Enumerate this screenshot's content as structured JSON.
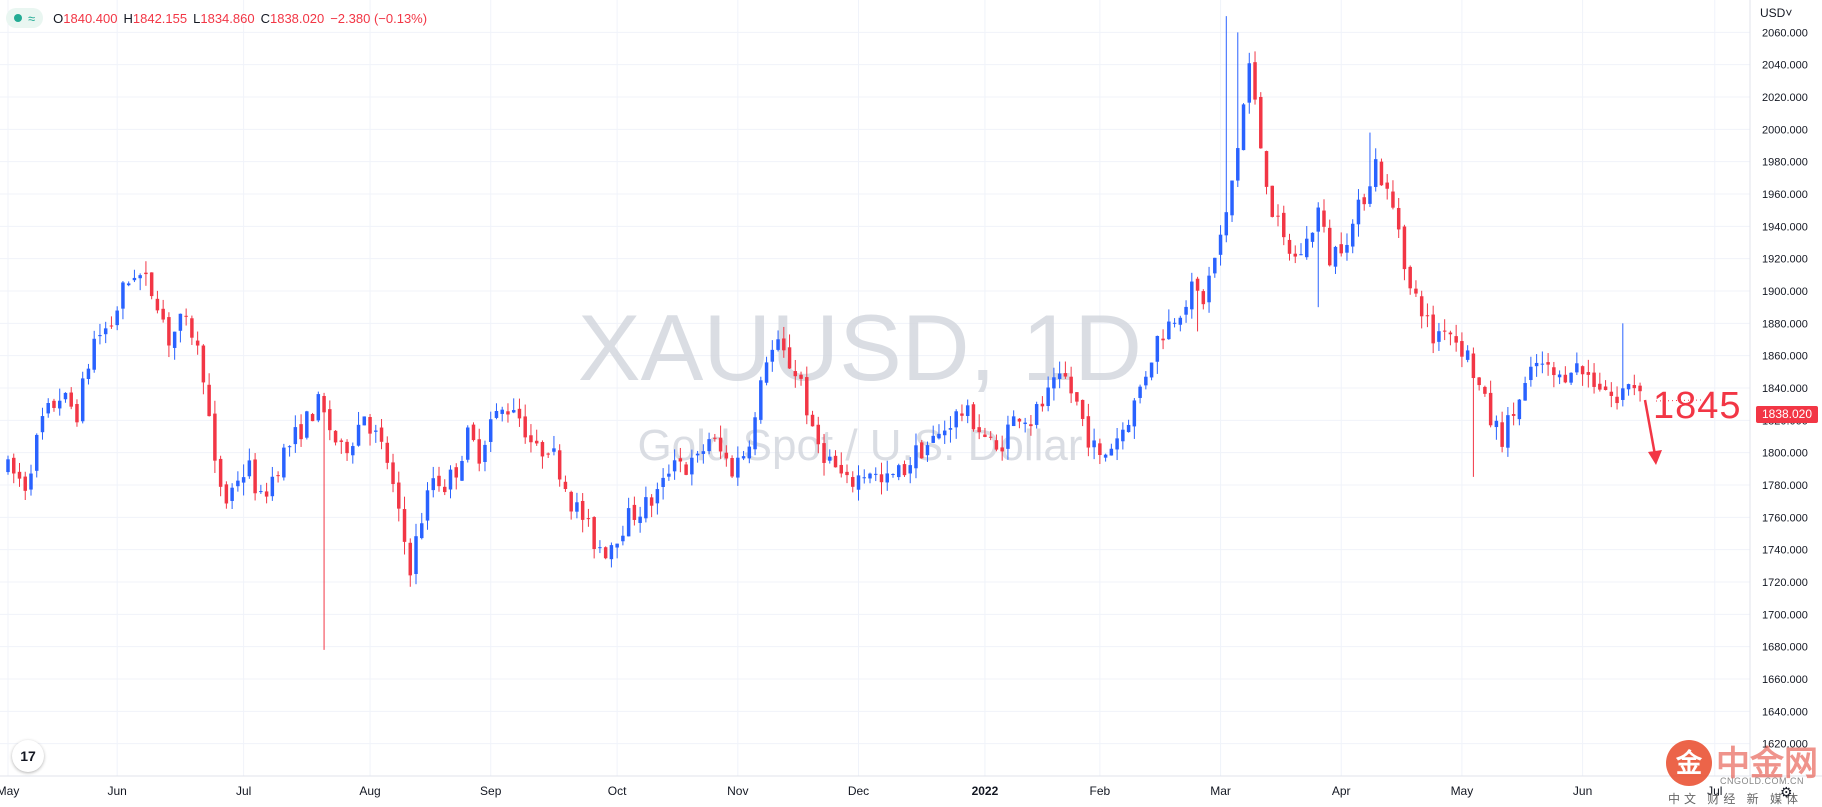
{
  "header": {
    "open_label": "O",
    "open": "1840.400",
    "high_label": "H",
    "high": "1842.155",
    "low_label": "L",
    "low": "1834.860",
    "close_label": "C",
    "close": "1838.020",
    "change": "−2.380 (−0.13%)",
    "wave_glyph": "≈"
  },
  "currency_label": "USD˅",
  "last_price": "1838.020",
  "annotation": "1845",
  "watermark": {
    "symbol": "XAUUSD, 1D",
    "description": "Gold Spot / U.S. Dollar"
  },
  "tv_logo": "17",
  "brand": {
    "logo_char": "金",
    "name": "中金网",
    "sub": "CNGOLD.COM.CN",
    "tags": "中文 财经 新 媒体"
  },
  "colors": {
    "up": "#2962ff",
    "down": "#f23645",
    "grid": "#f0f3fa",
    "axis_text": "#131722",
    "watermark": "#d1d4dc"
  },
  "chart_data": {
    "type": "candlestick",
    "y_axis": {
      "min": 1600,
      "max": 2080,
      "step": 20,
      "tick_labels": [
        "1620.000",
        "1640.000",
        "1660.000",
        "1680.000",
        "1700.000",
        "1720.000",
        "1740.000",
        "1760.000",
        "1780.000",
        "1800.000",
        "1820.000",
        "1840.000",
        "1860.000",
        "1880.000",
        "1900.000",
        "1920.000",
        "1940.000",
        "1960.000",
        "1980.000",
        "2000.000",
        "2020.000",
        "2040.000",
        "2060.000"
      ]
    },
    "x_axis": {
      "labels": [
        "May",
        "Jun",
        "Jul",
        "Aug",
        "Sep",
        "Oct",
        "Nov",
        "Dec",
        "2022",
        "Feb",
        "Mar",
        "Apr",
        "May",
        "Jun",
        "Jul"
      ],
      "label_positions": [
        0,
        19,
        41,
        63,
        84,
        106,
        127,
        148,
        170,
        190,
        211,
        232,
        253,
        274,
        297
      ]
    },
    "grid": true,
    "close_path": [
      [
        0,
        1790
      ],
      [
        3,
        1780
      ],
      [
        6,
        1820
      ],
      [
        9,
        1835
      ],
      [
        12,
        1825
      ],
      [
        15,
        1870
      ],
      [
        18,
        1880
      ],
      [
        20,
        1900
      ],
      [
        22,
        1912
      ],
      [
        24,
        1905
      ],
      [
        26,
        1895
      ],
      [
        28,
        1870
      ],
      [
        30,
        1880
      ],
      [
        32,
        1875
      ],
      [
        34,
        1850
      ],
      [
        36,
        1790
      ],
      [
        38,
        1770
      ],
      [
        40,
        1785
      ],
      [
        42,
        1790
      ],
      [
        44,
        1770
      ],
      [
        46,
        1785
      ],
      [
        48,
        1800
      ],
      [
        50,
        1810
      ],
      [
        52,
        1820
      ],
      [
        54,
        1830
      ],
      [
        56,
        1815
      ],
      [
        58,
        1800
      ],
      [
        60,
        1810
      ],
      [
        62,
        1825
      ],
      [
        64,
        1810
      ],
      [
        66,
        1795
      ],
      [
        68,
        1760
      ],
      [
        70,
        1730
      ],
      [
        72,
        1760
      ],
      [
        74,
        1785
      ],
      [
        76,
        1780
      ],
      [
        78,
        1790
      ],
      [
        80,
        1810
      ],
      [
        82,
        1800
      ],
      [
        84,
        1820
      ],
      [
        86,
        1825
      ],
      [
        88,
        1830
      ],
      [
        90,
        1815
      ],
      [
        92,
        1800
      ],
      [
        94,
        1805
      ],
      [
        96,
        1790
      ],
      [
        98,
        1770
      ],
      [
        100,
        1760
      ],
      [
        102,
        1745
      ],
      [
        104,
        1740
      ],
      [
        106,
        1750
      ],
      [
        108,
        1760
      ],
      [
        110,
        1765
      ],
      [
        112,
        1770
      ],
      [
        114,
        1780
      ],
      [
        116,
        1800
      ],
      [
        118,
        1790
      ],
      [
        120,
        1795
      ],
      [
        122,
        1810
      ],
      [
        124,
        1800
      ],
      [
        126,
        1790
      ],
      [
        128,
        1800
      ],
      [
        130,
        1820
      ],
      [
        132,
        1860
      ],
      [
        134,
        1865
      ],
      [
        136,
        1855
      ],
      [
        138,
        1845
      ],
      [
        140,
        1810
      ],
      [
        142,
        1800
      ],
      [
        144,
        1790
      ],
      [
        146,
        1780
      ],
      [
        148,
        1785
      ],
      [
        150,
        1790
      ],
      [
        152,
        1780
      ],
      [
        154,
        1785
      ],
      [
        156,
        1790
      ],
      [
        158,
        1800
      ],
      [
        160,
        1805
      ],
      [
        162,
        1810
      ],
      [
        164,
        1820
      ],
      [
        166,
        1825
      ],
      [
        168,
        1820
      ],
      [
        170,
        1810
      ],
      [
        172,
        1800
      ],
      [
        174,
        1815
      ],
      [
        176,
        1825
      ],
      [
        178,
        1820
      ],
      [
        180,
        1830
      ],
      [
        182,
        1840
      ],
      [
        184,
        1845
      ],
      [
        186,
        1830
      ],
      [
        188,
        1810
      ],
      [
        190,
        1795
      ],
      [
        192,
        1805
      ],
      [
        194,
        1815
      ],
      [
        196,
        1830
      ],
      [
        198,
        1850
      ],
      [
        200,
        1870
      ],
      [
        202,
        1880
      ],
      [
        204,
        1890
      ],
      [
        206,
        1900
      ],
      [
        208,
        1895
      ],
      [
        210,
        1920
      ],
      [
        212,
        1945
      ],
      [
        214,
        1990
      ],
      [
        216,
        2040
      ],
      [
        218,
        1990
      ],
      [
        220,
        1950
      ],
      [
        222,
        1930
      ],
      [
        224,
        1920
      ],
      [
        226,
        1930
      ],
      [
        228,
        1950
      ],
      [
        230,
        1920
      ],
      [
        232,
        1930
      ],
      [
        234,
        1940
      ],
      [
        236,
        1960
      ],
      [
        238,
        1980
      ],
      [
        240,
        1960
      ],
      [
        242,
        1940
      ],
      [
        244,
        1900
      ],
      [
        246,
        1890
      ],
      [
        248,
        1870
      ],
      [
        250,
        1880
      ],
      [
        252,
        1870
      ],
      [
        254,
        1860
      ],
      [
        256,
        1840
      ],
      [
        258,
        1820
      ],
      [
        260,
        1810
      ],
      [
        262,
        1825
      ],
      [
        264,
        1840
      ],
      [
        266,
        1855
      ],
      [
        268,
        1850
      ],
      [
        270,
        1845
      ],
      [
        272,
        1855
      ],
      [
        274,
        1850
      ],
      [
        276,
        1845
      ],
      [
        278,
        1840
      ],
      [
        280,
        1830
      ],
      [
        282,
        1845
      ],
      [
        284,
        1838
      ]
    ],
    "spikes": [
      [
        55,
        1678,
        1760
      ],
      [
        207,
        1875,
        1972
      ],
      [
        212,
        2070,
        2060
      ],
      [
        214,
        2060,
        2020
      ],
      [
        228,
        1890,
        1930
      ],
      [
        237,
        1998,
        1980
      ],
      [
        255,
        1785,
        1810
      ],
      [
        281,
        1880,
        1860
      ]
    ],
    "last_close": 1838.02,
    "annotation_value": 1845
  }
}
